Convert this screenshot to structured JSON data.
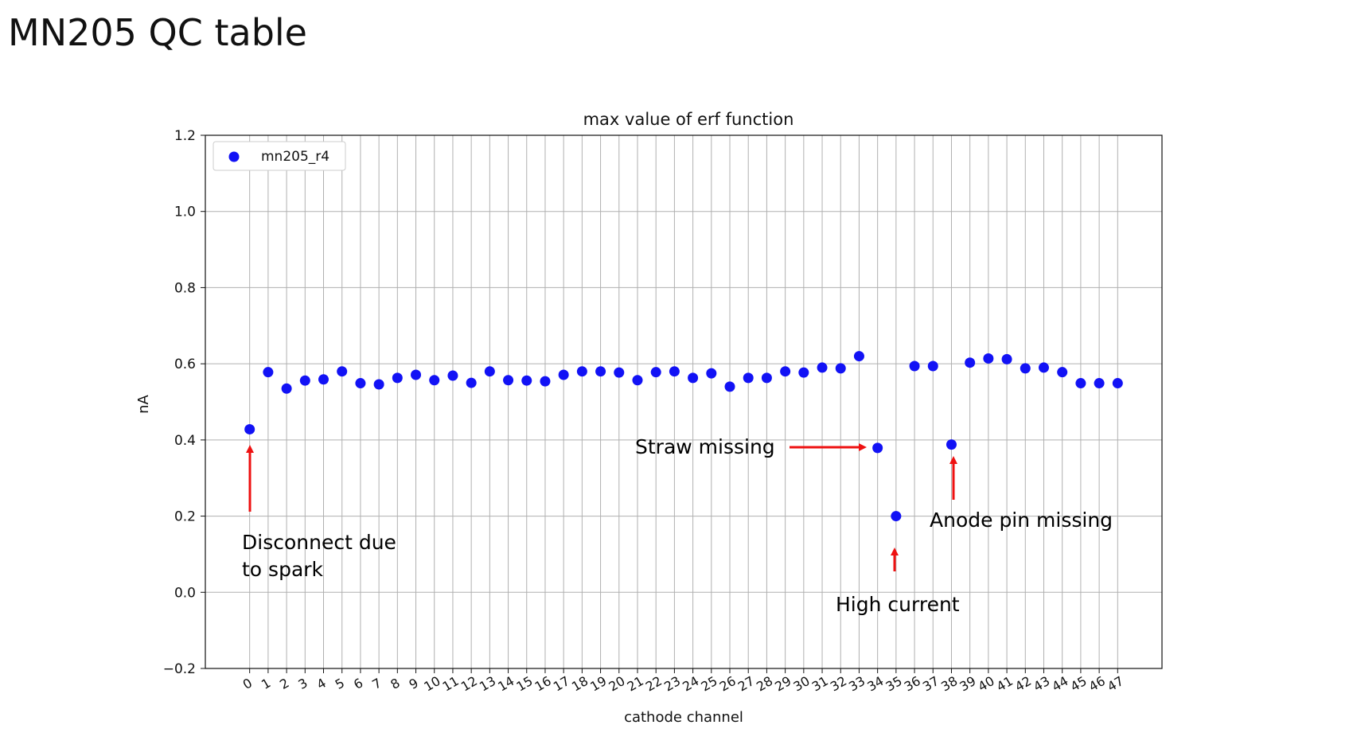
{
  "page": {
    "title": "MN205 QC table"
  },
  "colors": {
    "marker": "#1212f5",
    "arrow": "#ee1111",
    "grid": "#b0b0b0"
  },
  "chart_data": {
    "type": "scatter",
    "title": "max value of erf function",
    "xlabel": "cathode channel",
    "ylabel": "nA",
    "ylim": [
      -0.2,
      1.2
    ],
    "xlim": [
      -2.4,
      49.4
    ],
    "yticks": [
      -0.2,
      0.0,
      0.2,
      0.4,
      0.6,
      0.8,
      1.0,
      1.2
    ],
    "ytick_labels": [
      "−0.2",
      "0.0",
      "0.2",
      "0.4",
      "0.6",
      "0.8",
      "1.0",
      "1.2"
    ],
    "xticks": [
      0,
      1,
      2,
      3,
      4,
      5,
      6,
      7,
      8,
      9,
      10,
      11,
      12,
      13,
      14,
      15,
      16,
      17,
      18,
      19,
      20,
      21,
      22,
      23,
      24,
      25,
      26,
      27,
      28,
      29,
      30,
      31,
      32,
      33,
      34,
      35,
      36,
      37,
      38,
      39,
      40,
      41,
      42,
      43,
      44,
      45,
      46,
      47
    ],
    "grid": true,
    "legend_position": "top-left",
    "series": [
      {
        "name": "mn205_r4",
        "x": [
          0,
          1,
          2,
          3,
          4,
          5,
          6,
          7,
          8,
          9,
          10,
          11,
          12,
          13,
          14,
          15,
          16,
          17,
          18,
          19,
          20,
          21,
          22,
          23,
          24,
          25,
          26,
          27,
          28,
          29,
          30,
          31,
          32,
          33,
          34,
          35,
          36,
          37,
          38,
          39,
          40,
          41,
          42,
          43,
          44,
          45,
          46,
          47
        ],
        "y": [
          0.428,
          0.578,
          0.535,
          0.556,
          0.559,
          0.58,
          0.549,
          0.546,
          0.563,
          0.571,
          0.557,
          0.569,
          0.55,
          0.58,
          0.557,
          0.556,
          0.554,
          0.571,
          0.58,
          0.58,
          0.577,
          0.557,
          0.578,
          0.58,
          0.563,
          0.575,
          0.54,
          0.563,
          0.563,
          0.58,
          0.577,
          0.59,
          0.588,
          0.62,
          0.379,
          0.2,
          0.594,
          0.594,
          0.388,
          0.603,
          0.614,
          0.612,
          0.588,
          0.59,
          0.578,
          0.549,
          0.549,
          0.549
        ]
      }
    ],
    "annotations": [
      {
        "id": "spark",
        "text_lines": [
          "Disconnect due",
          "to spark"
        ]
      },
      {
        "id": "straw",
        "text_lines": [
          "Straw missing"
        ]
      },
      {
        "id": "current",
        "text_lines": [
          "High current"
        ]
      },
      {
        "id": "anode",
        "text_lines": [
          "Anode pin missing"
        ]
      }
    ]
  }
}
